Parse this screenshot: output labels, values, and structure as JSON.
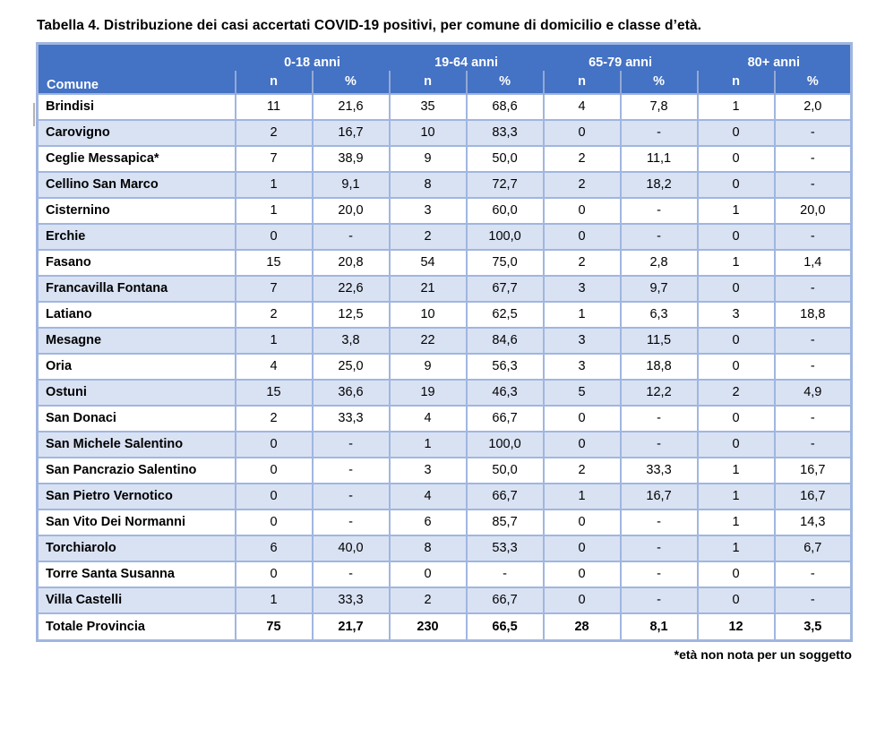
{
  "title": "Tabella 4. Distribuzione dei casi accertati COVID-19 positivi, per comune di domicilio e classe d’età.",
  "footnote": "*età non nota per un soggetto",
  "colors": {
    "header_bg": "#4472C4",
    "band_bg": "#D9E2F3",
    "border": "#A0B6E0",
    "header_divider": "#93A9D4"
  },
  "table": {
    "corner_header": "Comune",
    "age_groups": [
      "0-18 anni",
      "19-64 anni",
      "65-79 anni",
      "80+ anni"
    ],
    "subheaders": [
      "n",
      "%"
    ],
    "rows": [
      {
        "comune": "Brindisi",
        "values": [
          "11",
          "21,6",
          "35",
          "68,6",
          "4",
          "7,8",
          "1",
          "2,0"
        ]
      },
      {
        "comune": "Carovigno",
        "values": [
          "2",
          "16,7",
          "10",
          "83,3",
          "0",
          "-",
          "0",
          "-"
        ]
      },
      {
        "comune": "Ceglie Messapica*",
        "values": [
          "7",
          "38,9",
          "9",
          "50,0",
          "2",
          "11,1",
          "0",
          "-"
        ]
      },
      {
        "comune": "Cellino San Marco",
        "values": [
          "1",
          "9,1",
          "8",
          "72,7",
          "2",
          "18,2",
          "0",
          "-"
        ]
      },
      {
        "comune": "Cisternino",
        "values": [
          "1",
          "20,0",
          "3",
          "60,0",
          "0",
          "-",
          "1",
          "20,0"
        ]
      },
      {
        "comune": "Erchie",
        "values": [
          "0",
          "-",
          "2",
          "100,0",
          "0",
          "-",
          "0",
          "-"
        ]
      },
      {
        "comune": "Fasano",
        "values": [
          "15",
          "20,8",
          "54",
          "75,0",
          "2",
          "2,8",
          "1",
          "1,4"
        ]
      },
      {
        "comune": "Francavilla Fontana",
        "values": [
          "7",
          "22,6",
          "21",
          "67,7",
          "3",
          "9,7",
          "0",
          "-"
        ]
      },
      {
        "comune": "Latiano",
        "values": [
          "2",
          "12,5",
          "10",
          "62,5",
          "1",
          "6,3",
          "3",
          "18,8"
        ]
      },
      {
        "comune": "Mesagne",
        "values": [
          "1",
          "3,8",
          "22",
          "84,6",
          "3",
          "11,5",
          "0",
          "-"
        ]
      },
      {
        "comune": "Oria",
        "values": [
          "4",
          "25,0",
          "9",
          "56,3",
          "3",
          "18,8",
          "0",
          "-"
        ]
      },
      {
        "comune": "Ostuni",
        "values": [
          "15",
          "36,6",
          "19",
          "46,3",
          "5",
          "12,2",
          "2",
          "4,9"
        ]
      },
      {
        "comune": "San Donaci",
        "values": [
          "2",
          "33,3",
          "4",
          "66,7",
          "0",
          "-",
          "0",
          "-"
        ]
      },
      {
        "comune": "San Michele Salentino",
        "values": [
          "0",
          "-",
          "1",
          "100,0",
          "0",
          "-",
          "0",
          "-"
        ]
      },
      {
        "comune": "San Pancrazio Salentino",
        "values": [
          "0",
          "-",
          "3",
          "50,0",
          "2",
          "33,3",
          "1",
          "16,7"
        ]
      },
      {
        "comune": "San Pietro Vernotico",
        "values": [
          "0",
          "-",
          "4",
          "66,7",
          "1",
          "16,7",
          "1",
          "16,7"
        ]
      },
      {
        "comune": "San Vito Dei Normanni",
        "values": [
          "0",
          "-",
          "6",
          "85,7",
          "0",
          "-",
          "1",
          "14,3"
        ]
      },
      {
        "comune": "Torchiarolo",
        "values": [
          "6",
          "40,0",
          "8",
          "53,3",
          "0",
          "-",
          "1",
          "6,7"
        ]
      },
      {
        "comune": "Torre Santa Susanna",
        "values": [
          "0",
          "-",
          "0",
          "-",
          "0",
          "-",
          "0",
          "-"
        ]
      },
      {
        "comune": "Villa Castelli",
        "values": [
          "1",
          "33,3",
          "2",
          "66,7",
          "0",
          "-",
          "0",
          "-"
        ]
      }
    ],
    "total": {
      "comune": "Totale Provincia",
      "values": [
        "75",
        "21,7",
        "230",
        "66,5",
        "28",
        "8,1",
        "12",
        "3,5"
      ]
    }
  }
}
